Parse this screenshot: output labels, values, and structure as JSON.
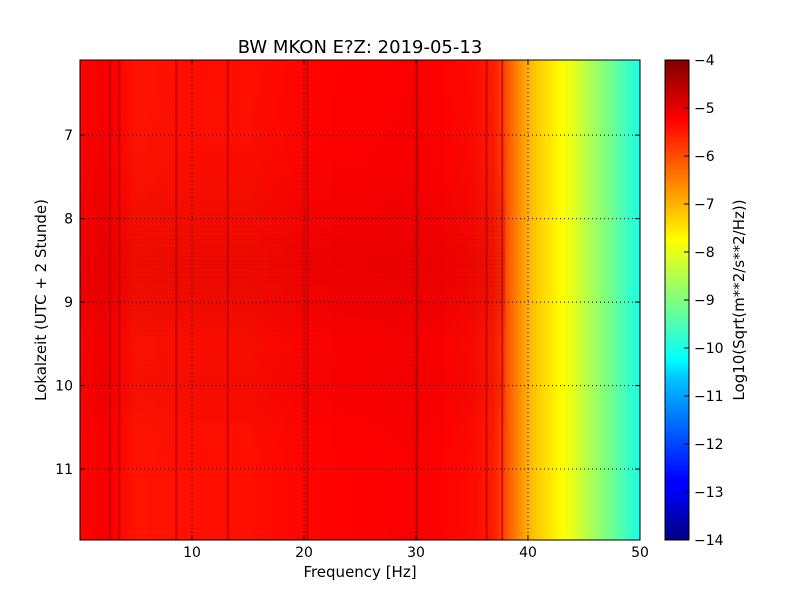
{
  "chart_data": {
    "type": "heatmap",
    "title": "BW MKON E?Z: 2019-05-13",
    "xlabel": "Frequency [Hz]",
    "ylabel": "Lokalzeit (UTC + 2 Stunde)",
    "xlim": [
      0,
      50
    ],
    "ylim": [
      11.85,
      6.1
    ],
    "x_ticks": [
      "10",
      "20",
      "30",
      "40",
      "50"
    ],
    "x_tick_values": [
      10,
      20,
      30,
      40,
      50
    ],
    "y_ticks": [
      "7",
      "8",
      "9",
      "10",
      "11"
    ],
    "y_tick_values": [
      7,
      8,
      9,
      10,
      11
    ],
    "grid": true,
    "colormap": "jet",
    "colorbar": {
      "label": "Log10(Sqrt(m**2/s**2/Hz))",
      "range": [
        -14,
        -4
      ],
      "ticks": [
        "−4",
        "−5",
        "−6",
        "−7",
        "−8",
        "−9",
        "−10",
        "−11",
        "−12",
        "−13",
        "−14"
      ],
      "tick_values": [
        -4,
        -5,
        -6,
        -7,
        -8,
        -9,
        -10,
        -11,
        -12,
        -13,
        -14
      ]
    },
    "frequency_profile": {
      "frequency_hz": [
        0,
        2,
        5,
        10,
        15,
        20,
        25,
        30,
        35,
        37,
        38,
        39,
        40,
        41,
        42,
        43,
        44,
        45,
        46,
        47,
        48,
        49,
        50
      ],
      "log10_amplitude": [
        -5.3,
        -5.15,
        -5.45,
        -5.4,
        -5.4,
        -5.3,
        -5.25,
        -5.2,
        -5.35,
        -5.55,
        -6.0,
        -6.5,
        -7.0,
        -7.3,
        -7.5,
        -7.75,
        -8.0,
        -8.35,
        -8.7,
        -9.0,
        -9.35,
        -9.7,
        -10.0
      ]
    },
    "spectral_lines_hz": [
      2.7,
      3.5,
      8.6,
      13.2,
      20.3,
      30.1,
      36.3,
      37.7
    ],
    "hourly_offset": {
      "hour": [
        6.1,
        7.0,
        7.5,
        8.0,
        8.5,
        9.0,
        9.5,
        10.0,
        10.5,
        11.0,
        11.85
      ],
      "delta_log10": [
        0.0,
        0.05,
        0.1,
        0.2,
        0.3,
        0.25,
        0.1,
        0.15,
        0.05,
        0.0,
        0.0
      ]
    }
  }
}
